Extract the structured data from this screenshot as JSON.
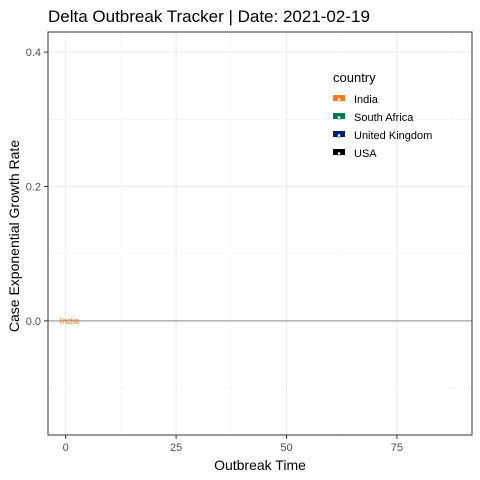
{
  "chart_data": {
    "type": "line",
    "title": "Delta Outbreak Tracker | Date: 2021-02-19",
    "xlabel": "Outbreak Time",
    "ylabel": "Case Exponential Growth Rate",
    "xlim": [
      -4,
      92
    ],
    "ylim": [
      -0.17,
      0.43
    ],
    "x_ticks": [
      0,
      25,
      50,
      75
    ],
    "x_tick_labels": [
      "0",
      "25",
      "50",
      "75"
    ],
    "y_ticks": [
      0.0,
      0.2,
      0.4
    ],
    "y_tick_labels": [
      "0.0",
      "0.2",
      "0.4"
    ],
    "grid": true,
    "reference_line_y": 0,
    "legend": {
      "title": "country",
      "position": "top-right",
      "entries": [
        {
          "label": "India",
          "color": "#f47b20"
        },
        {
          "label": "South Africa",
          "color": "#007a4d"
        },
        {
          "label": "United Kingdom",
          "color": "#012169"
        },
        {
          "label": "USA",
          "color": "#000000"
        }
      ]
    },
    "series": [
      {
        "name": "India",
        "color": "#f47b20",
        "x": [
          0
        ],
        "y": [
          0.0
        ],
        "label": "India"
      }
    ]
  }
}
